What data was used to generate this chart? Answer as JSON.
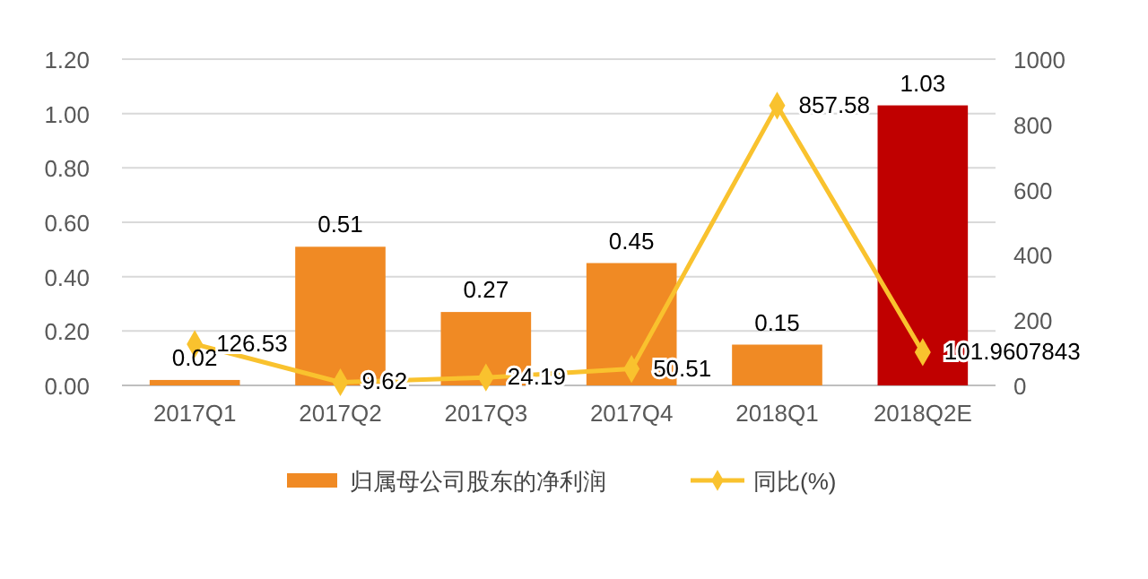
{
  "chart_data": {
    "type": "bar",
    "categories": [
      "2017Q1",
      "2017Q2",
      "2017Q3",
      "2017Q4",
      "2018Q1",
      "2018Q2E"
    ],
    "series": [
      {
        "name": "归属母公司股东的净利润",
        "color": "#f08a24",
        "colors": [
          "#f08a24",
          "#f08a24",
          "#f08a24",
          "#f08a24",
          "#f08a24",
          "#c00000"
        ],
        "values": [
          0.02,
          0.51,
          0.27,
          0.45,
          0.15,
          1.03
        ]
      },
      {
        "name": "同比(%)",
        "type": "line",
        "axis": "y2",
        "color": "#f9c22e",
        "marker": "diamond",
        "values": [
          126.53,
          9.62,
          24.19,
          50.51,
          857.58,
          101.9607843
        ]
      }
    ],
    "ylim": [
      0,
      1.2
    ],
    "yticks": [
      {
        "value": 0,
        "label": "0.00"
      },
      {
        "value": 0.2,
        "label": "0.20"
      },
      {
        "value": 0.4,
        "label": "0.40"
      },
      {
        "value": 0.6,
        "label": "0.60"
      },
      {
        "value": 0.8,
        "label": "0.80"
      },
      {
        "value": 1,
        "label": "1.00"
      },
      {
        "value": 1.2,
        "label": "1.20"
      }
    ],
    "y2lim": [
      0,
      1000
    ],
    "y2ticks": [
      0,
      200,
      400,
      600,
      800,
      1000
    ],
    "grid": "y",
    "legend": "bottom",
    "data_labels": true
  }
}
